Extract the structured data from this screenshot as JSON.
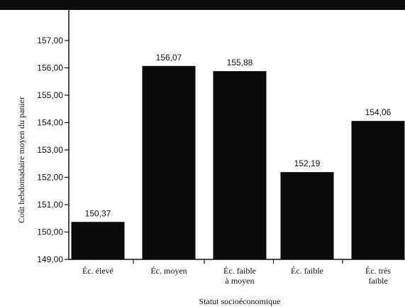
{
  "chart_data": {
    "type": "bar",
    "categories": [
      "Éc. élevé",
      "Éc. moyen",
      "Éc. faible|à moyen",
      "Éc. faible",
      "Éc. très|faible"
    ],
    "values": [
      150.37,
      156.07,
      155.88,
      152.19,
      154.06
    ],
    "data_labels": [
      "150,37",
      "156,07",
      "155,88",
      "152,19",
      "154,06"
    ],
    "ylim": [
      149,
      157.5
    ],
    "yticks": [
      149,
      150,
      151,
      152,
      153,
      154,
      155,
      156,
      157
    ],
    "ytick_labels": [
      "149,00",
      "150,00",
      "151,00",
      "152,00",
      "153,00",
      "154,00",
      "155,00",
      "156,00",
      "157,00"
    ],
    "xlabel": "Statut socioéconomique",
    "ylabel": "Coût hebdomadaire moyen du panier",
    "bar_color": "#0a0a0a",
    "grid": false
  }
}
